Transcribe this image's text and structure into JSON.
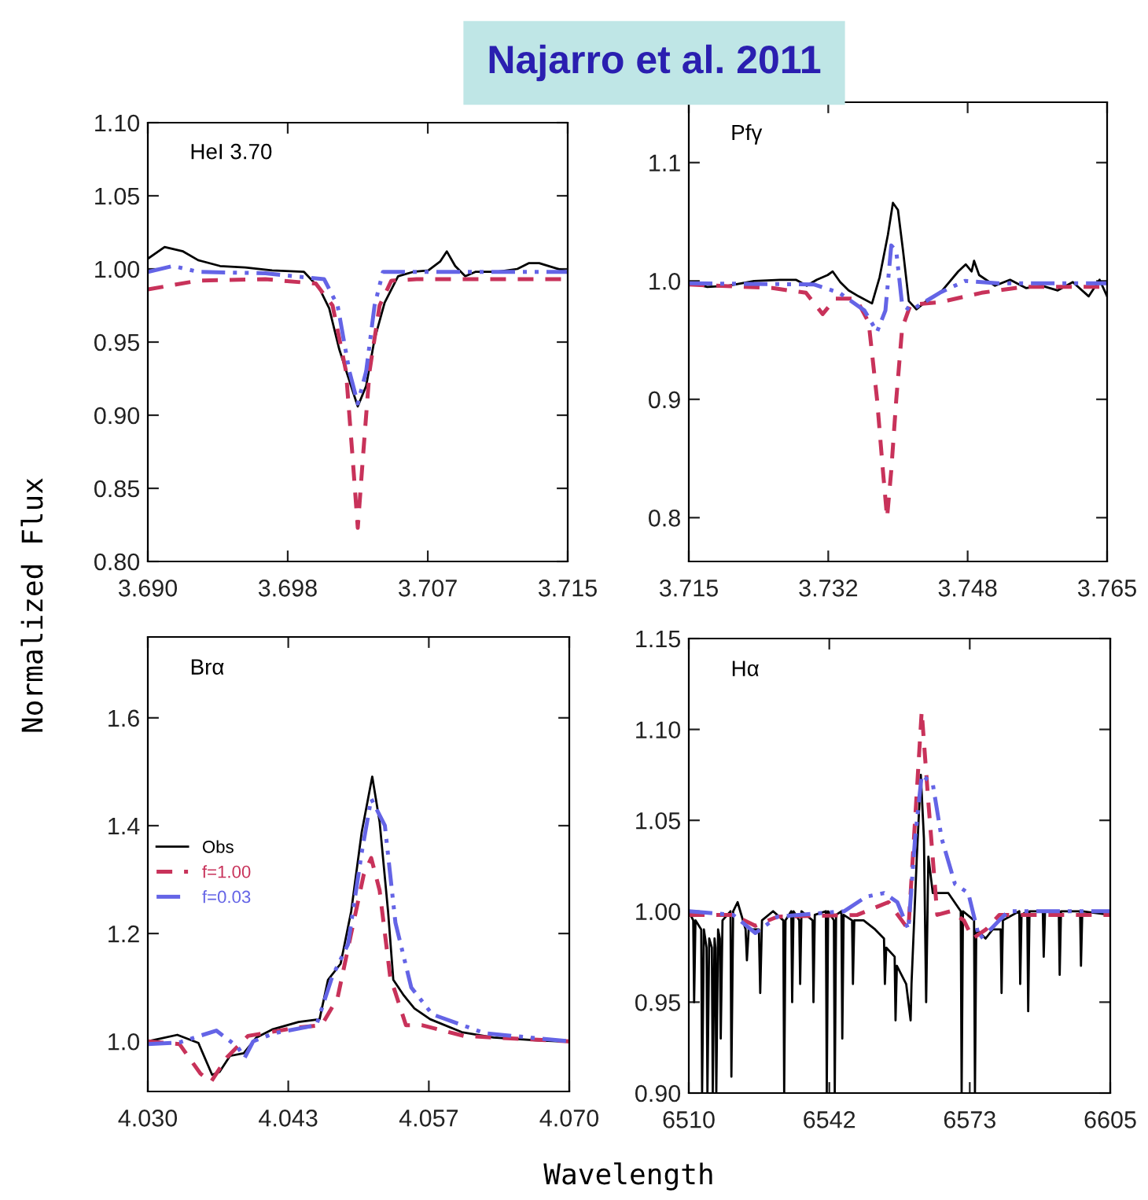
{
  "chart_data": [
    {
      "type": "line",
      "title": "Najarro et al. 2011",
      "ylabel": "Normalized Flux",
      "annotations": [
        "HeI 3.70"
      ],
      "xlim": [
        3.69,
        3.715
      ],
      "xticks": [
        {
          "value": 3.69,
          "label": "3.690"
        },
        {
          "value": 3.69833,
          "label": "3.698"
        },
        {
          "value": 3.70667,
          "label": "3.707"
        },
        {
          "value": 3.715,
          "label": "3.715"
        }
      ],
      "ylim": [
        0.8,
        1.1
      ],
      "yticks": [
        {
          "value": 0.8,
          "label": "0.80"
        },
        {
          "value": 0.85,
          "label": "0.85"
        },
        {
          "value": 0.9,
          "label": "0.90"
        },
        {
          "value": 0.95,
          "label": "0.95"
        },
        {
          "value": 1.0,
          "label": "1.00"
        },
        {
          "value": 1.05,
          "label": "1.05"
        },
        {
          "value": 1.1,
          "label": "1.10"
        }
      ],
      "series": [
        {
          "color": "#000000",
          "line_style": "solid",
          "x": [
            3.69,
            3.691,
            3.6921,
            3.693,
            3.6943,
            3.6958,
            3.6974,
            3.6993,
            3.7002,
            3.7008,
            3.7014,
            3.7021,
            3.7025,
            3.703,
            3.7035,
            3.7041,
            3.7049,
            3.7058,
            3.7067,
            3.7074,
            3.7078,
            3.7083,
            3.7089,
            3.7095,
            3.7108,
            3.712,
            3.7127,
            3.7133,
            3.715
          ],
          "values": [
            1.007,
            1.015,
            1.012,
            1.006,
            1.002,
            1.001,
            0.999,
            0.998,
            0.987,
            0.973,
            0.945,
            0.92,
            0.906,
            0.92,
            0.952,
            0.977,
            0.995,
            0.998,
            0.999,
            1.005,
            1.012,
            1.002,
            0.995,
            0.998,
            0.998,
            1.0,
            1.004,
            1.004,
            0.998
          ]
        },
        {
          "color": "#c8325a",
          "line_style": "dashed",
          "x": [
            3.69,
            3.693,
            3.697,
            3.7,
            3.701,
            3.7018,
            3.7022,
            3.7025,
            3.7028,
            3.7032,
            3.7038,
            3.7045,
            3.706,
            3.715
          ],
          "values": [
            0.986,
            0.992,
            0.993,
            0.99,
            0.975,
            0.93,
            0.87,
            0.823,
            0.87,
            0.93,
            0.975,
            0.992,
            0.993,
            0.993
          ]
        },
        {
          "color": "#6464e6",
          "line_style": "dashdot",
          "x": [
            3.69,
            3.6915,
            3.693,
            3.697,
            3.7005,
            3.7013,
            3.702,
            3.7025,
            3.703,
            3.7035,
            3.704,
            3.706,
            3.715
          ],
          "values": [
            0.998,
            1.002,
            0.998,
            0.997,
            0.993,
            0.975,
            0.93,
            0.908,
            0.93,
            0.975,
            0.998,
            0.998,
            0.998
          ]
        }
      ]
    },
    {
      "type": "line",
      "annotations": [
        "Pfγ"
      ],
      "xlim": [
        3.715,
        3.765
      ],
      "xticks": [
        {
          "value": 3.715,
          "label": "3.715"
        },
        {
          "value": 3.73167,
          "label": "3.732"
        },
        {
          "value": 3.74833,
          "label": "3.748"
        },
        {
          "value": 3.765,
          "label": "3.765"
        }
      ],
      "ylim": [
        0.763,
        1.151
      ],
      "yticks": [
        {
          "value": 0.8,
          "label": "0.8"
        },
        {
          "value": 0.9,
          "label": "0.9"
        },
        {
          "value": 1.0,
          "label": "1.0"
        },
        {
          "value": 1.1,
          "label": "1.1"
        }
      ],
      "series": [
        {
          "color": "#000000",
          "line_style": "solid",
          "x": [
            3.715,
            3.7172,
            3.7197,
            3.7228,
            3.7259,
            3.7278,
            3.7291,
            3.7303,
            3.7316,
            3.7322,
            3.7331,
            3.7341,
            3.7353,
            3.7369,
            3.7378,
            3.7388,
            3.7394,
            3.74,
            3.7406,
            3.7413,
            3.7422,
            3.7434,
            3.7453,
            3.7472,
            3.7481,
            3.7488,
            3.7491,
            3.7497,
            3.7516,
            3.7534,
            3.7553,
            3.7572,
            3.7591,
            3.7609,
            3.7628,
            3.7641,
            3.765
          ],
          "values": [
            0.999,
            0.995,
            0.996,
            1.0,
            1.001,
            1.001,
            0.996,
            1.001,
            1.005,
            1.008,
            0.999,
            0.992,
            0.987,
            0.981,
            1.003,
            1.039,
            1.066,
            1.06,
            1.026,
            0.983,
            0.976,
            0.983,
            0.992,
            1.008,
            1.014,
            1.008,
            1.017,
            1.005,
            0.996,
            1.001,
            0.994,
            0.996,
            0.992,
            0.999,
            0.987,
            1.001,
            0.987
          ]
        },
        {
          "color": "#c8325a",
          "line_style": "dashed",
          "x": [
            3.715,
            3.725,
            3.729,
            3.731,
            3.7325,
            3.735,
            3.7365,
            3.7375,
            3.7382,
            3.7387,
            3.7392,
            3.7398,
            3.7405,
            3.7415,
            3.745,
            3.75,
            3.755,
            3.765
          ],
          "values": [
            0.997,
            0.994,
            0.99,
            0.972,
            0.985,
            0.985,
            0.965,
            0.9,
            0.84,
            0.8,
            0.84,
            0.9,
            0.96,
            0.98,
            0.982,
            0.99,
            0.995,
            0.995
          ]
        },
        {
          "color": "#6464e6",
          "line_style": "dashdot",
          "x": [
            3.715,
            3.73,
            3.733,
            3.736,
            3.7375,
            3.7385,
            3.7392,
            3.7398,
            3.7405,
            3.7415,
            3.745,
            3.748,
            3.752,
            3.765
          ],
          "values": [
            0.998,
            0.997,
            0.99,
            0.975,
            0.957,
            0.975,
            1.03,
            1.025,
            0.98,
            0.975,
            0.99,
            1.0,
            0.998,
            0.998
          ]
        }
      ]
    },
    {
      "type": "line",
      "xlabel": "Wavelength",
      "annotations": [
        "Brα"
      ],
      "legend": "left",
      "xlim": [
        4.03,
        4.07
      ],
      "xticks": [
        {
          "value": 4.03,
          "label": "4.030"
        },
        {
          "value": 4.04333,
          "label": "4.043"
        },
        {
          "value": 4.05667,
          "label": "4.057"
        },
        {
          "value": 4.07,
          "label": "4.070"
        }
      ],
      "ylim": [
        0.907,
        1.75
      ],
      "yticks": [
        {
          "value": 1.0,
          "label": "1.0"
        },
        {
          "value": 1.2,
          "label": "1.2"
        },
        {
          "value": 1.4,
          "label": "1.4"
        },
        {
          "value": 1.6,
          "label": "1.6"
        }
      ],
      "series": [
        {
          "name": "Obs",
          "color": "#000000",
          "line_style": "solid",
          "x": [
            4.03,
            4.0328,
            4.0348,
            4.0361,
            4.0368,
            4.0378,
            4.0391,
            4.0403,
            4.0418,
            4.0443,
            4.0463,
            4.0471,
            4.0483,
            4.0493,
            4.0503,
            4.0513,
            4.052,
            4.0528,
            4.0533,
            4.0543,
            4.0553,
            4.0568,
            4.0598,
            4.0628,
            4.0668,
            4.07
          ],
          "values": [
            1.0,
            1.012,
            0.997,
            0.938,
            0.943,
            0.973,
            0.978,
            1.007,
            1.022,
            1.036,
            1.041,
            1.114,
            1.144,
            1.241,
            1.388,
            1.491,
            1.407,
            1.241,
            1.114,
            1.085,
            1.061,
            1.041,
            1.017,
            1.007,
            1.002,
            0.999
          ]
        },
        {
          "name": "f=1.00",
          "color": "#c8325a",
          "line_style": "dashed",
          "x": [
            4.03,
            4.033,
            4.035,
            4.036,
            4.0375,
            4.0395,
            4.044,
            4.0465,
            4.048,
            4.0493,
            4.0505,
            4.0512,
            4.052,
            4.053,
            4.0545,
            4.056,
            4.06,
            4.07
          ],
          "values": [
            1.0,
            0.995,
            0.94,
            0.925,
            0.97,
            1.01,
            1.025,
            1.03,
            1.08,
            1.2,
            1.31,
            1.34,
            1.28,
            1.12,
            1.03,
            1.03,
            1.01,
            1.0
          ]
        },
        {
          "name": "f=0.03",
          "color": "#6464e6",
          "line_style": "dashdot",
          "x": [
            4.03,
            4.033,
            4.0365,
            4.0385,
            4.0392,
            4.04,
            4.042,
            4.046,
            4.0475,
            4.049,
            4.0503,
            4.0512,
            4.0525,
            4.0535,
            4.055,
            4.057,
            4.062,
            4.07
          ],
          "values": [
            0.995,
            0.998,
            1.02,
            0.99,
            0.97,
            1.0,
            1.015,
            1.03,
            1.12,
            1.18,
            1.35,
            1.45,
            1.4,
            1.22,
            1.1,
            1.05,
            1.015,
            1.0
          ]
        }
      ]
    },
    {
      "type": "line",
      "annotations": [
        "Hα"
      ],
      "xlim": [
        6510,
        6605
      ],
      "xticks": [
        6510,
        {
          "value": 6541.67,
          "label": "6542"
        },
        {
          "value": 6573.33,
          "label": "6573"
        },
        6605
      ],
      "ylim": [
        0.9,
        1.15
      ],
      "yticks": [
        {
          "value": 0.9,
          "label": "0.90"
        },
        {
          "value": 0.95,
          "label": "0.95"
        },
        {
          "value": 1.0,
          "label": "1.00"
        },
        {
          "value": 1.05,
          "label": "1.05"
        },
        {
          "value": 1.1,
          "label": "1.10"
        },
        {
          "value": 1.15,
          "label": "1.15"
        }
      ],
      "series": [
        {
          "color": "#000000",
          "line_style": "solid",
          "x": [
            6510,
            6511,
            6511.2,
            6511.5,
            6512.8,
            6513,
            6513.4,
            6514,
            6514.2,
            6514.6,
            6515.2,
            6515.4,
            6515.8,
            6516,
            6516.2,
            6516.6,
            6517,
            6517.2,
            6517.6,
            6519.4,
            6519.6,
            6520,
            6521,
            6522.8,
            6523.1,
            6523.5,
            6525.8,
            6526.1,
            6526.5,
            6529,
            6531.3,
            6531.5,
            6531.8,
            6533.1,
            6533.3,
            6533.6,
            6534.9,
            6535.1,
            6535.4,
            6537.9,
            6538.1,
            6538.4,
            6540.9,
            6541.1,
            6541.4,
            6542.7,
            6542.9,
            6543.2,
            6544.4,
            6544.6,
            6544.9,
            6546.8,
            6547.0,
            6547.3,
            6549.4,
            6552,
            6554,
            6554.2,
            6554.5,
            6556.4,
            6556.6,
            6556.9,
            6559,
            6560.0,
            6560.2,
            6561.4,
            6562.3,
            6563.0,
            6563.5,
            6564.0,
            6565,
            6568.5,
            6571.3,
            6571.5,
            6571.8,
            6574.3,
            6574.5,
            6574.8,
            6576.9,
            6578.5,
            6580.3,
            6580.5,
            6580.8,
            6584.5,
            6584.7,
            6585,
            6586.3,
            6586.5,
            6586.8,
            6589.8,
            6590,
            6590.3,
            6593.4,
            6593.6,
            6593.9,
            6598.2,
            6598.4,
            6598.7,
            6605
          ],
          "values": [
            1.0,
            0.995,
            0.95,
            0.995,
            0.99,
            0.9,
            0.99,
            0.98,
            0.9,
            0.985,
            0.98,
            0.9,
            0.985,
            0.98,
            0.9,
            0.99,
            0.985,
            0.93,
            0.995,
            1.0,
            0.909,
            1.0,
            1.005,
            0.99,
            0.973,
            0.99,
            0.99,
            0.955,
            0.995,
            1.0,
            0.995,
            0.9,
            0.995,
            1.0,
            0.95,
            1.0,
            0.995,
            0.96,
            1.0,
            0.995,
            0.95,
            0.998,
            1.0,
            0.9,
            1.0,
            0.995,
            0.9,
            0.998,
            1.0,
            0.93,
            0.998,
            0.995,
            0.96,
            0.995,
            0.995,
            0.99,
            0.985,
            0.96,
            0.98,
            0.975,
            0.94,
            0.97,
            0.96,
            0.94,
            0.96,
            1.03,
            1.075,
            1.04,
            0.95,
            1.03,
            1.01,
            1.01,
            1.0,
            0.9,
            1.0,
            0.995,
            0.9,
            0.99,
            0.985,
            0.99,
            0.99,
            0.955,
            0.995,
            1.0,
            0.96,
            0.998,
            1.0,
            0.945,
            1.0,
            1.0,
            0.975,
            1.0,
            1.0,
            0.965,
            1.0,
            1.0,
            0.97,
            1.0,
            0.998
          ]
        },
        {
          "color": "#c8325a",
          "line_style": "dashed",
          "x": [
            6510,
            6520,
            6525,
            6530,
            6548,
            6552,
            6555,
            6558,
            6559.5,
            6561,
            6562.5,
            6564,
            6566,
            6569,
            6572,
            6574,
            6577,
            6580,
            6605
          ],
          "values": [
            0.998,
            0.998,
            0.992,
            0.997,
            0.998,
            1.002,
            1.005,
            0.995,
            0.99,
            1.05,
            1.11,
            1.06,
            0.998,
            1.0,
            0.995,
            0.985,
            0.99,
            0.998,
            0.998
          ]
        },
        {
          "color": "#6464e6",
          "line_style": "dashdot",
          "x": [
            6510,
            6520,
            6525,
            6530,
            6545,
            6550,
            6554,
            6557,
            6559.5,
            6561,
            6562.5,
            6565,
            6567,
            6570,
            6573,
            6575.5,
            6578,
            6582,
            6605
          ],
          "values": [
            1.0,
            0.998,
            0.988,
            0.997,
            1.0,
            1.008,
            1.01,
            1.005,
            0.99,
            1.04,
            1.075,
            1.07,
            1.04,
            1.015,
            1.01,
            0.985,
            0.99,
            1.0,
            1.0
          ]
        }
      ]
    }
  ]
}
